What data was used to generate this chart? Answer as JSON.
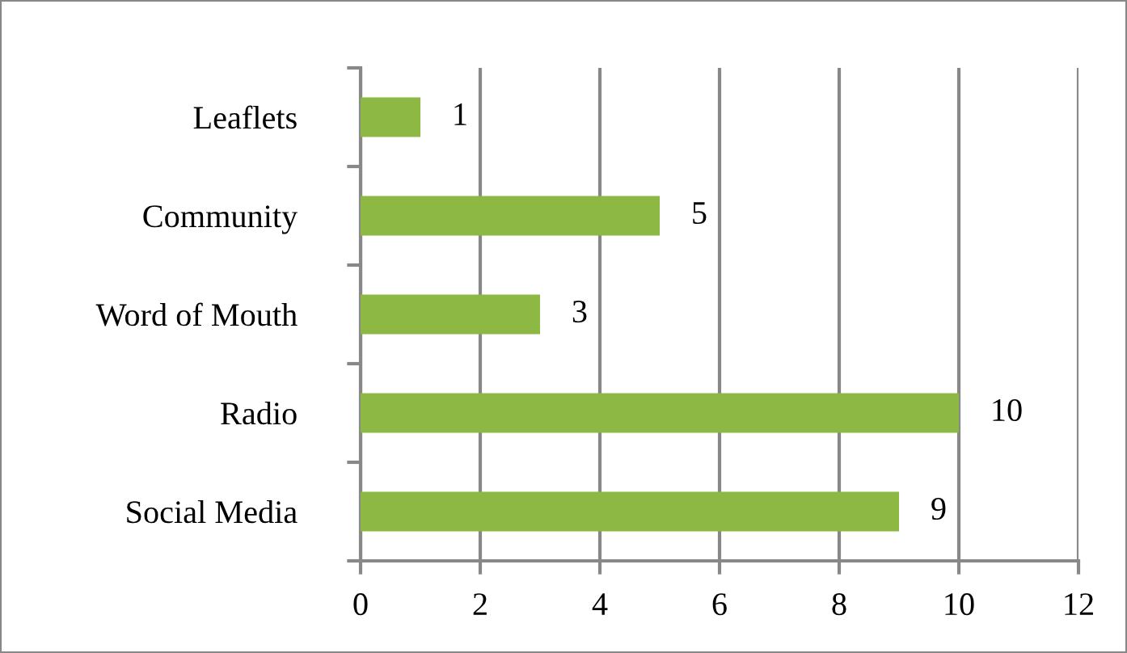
{
  "chart_data": {
    "type": "bar",
    "orientation": "horizontal",
    "categories": [
      "Leaflets",
      "Community",
      "Word of Mouth",
      "Radio",
      "Social Media"
    ],
    "values": [
      1,
      5,
      3,
      10,
      9
    ],
    "color": "#8db843",
    "xlim": [
      0,
      12
    ],
    "xticks": [
      0,
      2,
      4,
      6,
      8,
      10,
      12
    ],
    "grid": "x",
    "data_labels": true
  }
}
